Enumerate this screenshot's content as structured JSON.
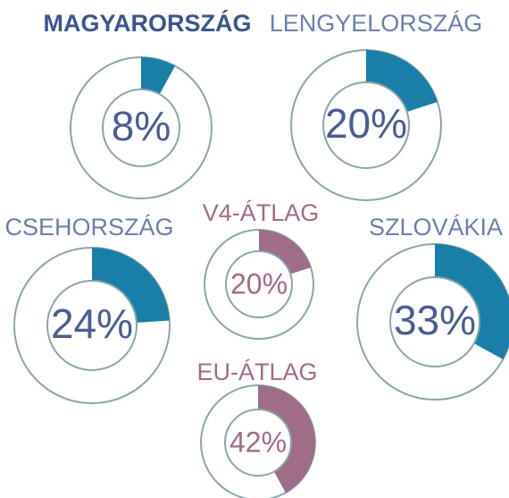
{
  "chart_data": [
    {
      "type": "donut",
      "title": "MAGYARORSZÁG",
      "values": [
        8
      ],
      "value_labels": [
        "8%"
      ],
      "color": "#1a7fa8",
      "text_color": "#4a5d93",
      "title_color": "#3b5591"
    },
    {
      "type": "donut",
      "title": "LENGYELORSZÁG",
      "values": [
        20
      ],
      "value_labels": [
        "20%"
      ],
      "color": "#1a7fa8",
      "text_color": "#4a5d93",
      "title_color": "#6b7fb0"
    },
    {
      "type": "donut",
      "title": "CSEHORSZÁG",
      "values": [
        24
      ],
      "value_labels": [
        "24%"
      ],
      "color": "#1a7fa8",
      "text_color": "#4a5d93",
      "title_color": "#6b7fb0"
    },
    {
      "type": "donut",
      "title": "V4-ÁTLAG",
      "values": [
        20
      ],
      "value_labels": [
        "20%"
      ],
      "color": "#a06c88",
      "text_color": "#a06c88",
      "title_color": "#a06c88"
    },
    {
      "type": "donut",
      "title": "SZLOVÁKIA",
      "values": [
        33
      ],
      "value_labels": [
        "33%"
      ],
      "color": "#1a7fa8",
      "text_color": "#4a5d93",
      "title_color": "#6b7fb0"
    },
    {
      "type": "donut",
      "title": "EU-ÁTLAG",
      "values": [
        42
      ],
      "value_labels": [
        "42%"
      ],
      "color": "#a06c88",
      "text_color": "#a06c88",
      "title_color": "#a06c88"
    }
  ]
}
